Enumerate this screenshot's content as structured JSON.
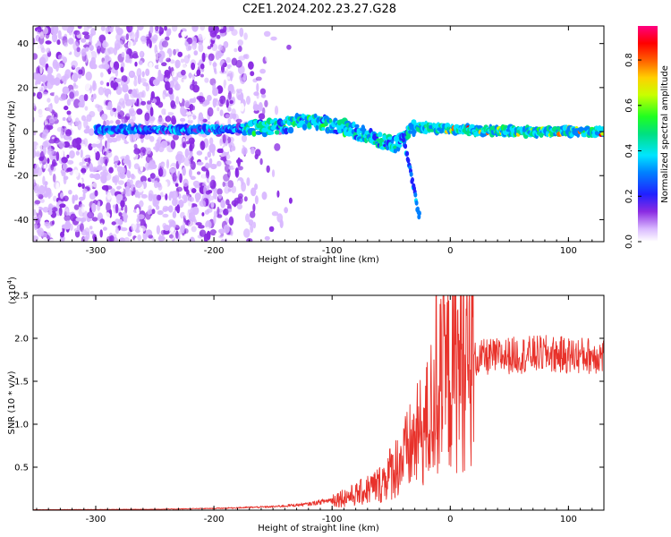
{
  "title": "C2E1.2024.202.23.27.G28",
  "chart_data": [
    {
      "type": "heatmap",
      "xlabel": "Height of straight line (km)",
      "ylabel": "Frequency (Hz)",
      "xlim": [
        -353,
        130
      ],
      "ylim": [
        -50,
        48
      ],
      "xticks": [
        -300,
        -200,
        -100,
        0,
        100
      ],
      "yticks": [
        -40,
        -20,
        0,
        20,
        40
      ],
      "colorbar": {
        "label": "Normalized spectral amplitude",
        "range": [
          0,
          0.95
        ],
        "ticks": [
          0.0,
          0.2,
          0.4,
          0.6,
          0.8
        ],
        "colormap": "purple-blue-cyan-green-yellow-orange-red-magenta"
      },
      "features": {
        "noise_region_x": [
          -353,
          -130
        ],
        "dense_noise_until_x": -175,
        "main_ridge_y_at_x": [
          [
            -295,
            1
          ],
          [
            -200,
            1
          ],
          [
            -150,
            2
          ],
          [
            -120,
            5
          ],
          [
            -90,
            2
          ],
          [
            -60,
            -4
          ],
          [
            -45,
            -6
          ],
          [
            -30,
            2
          ],
          [
            0,
            1
          ],
          [
            60,
            0
          ],
          [
            130,
            0
          ]
        ],
        "branch_down_y_at_x": [
          [
            -40,
            -2
          ],
          [
            -35,
            -15
          ],
          [
            -30,
            -28
          ],
          [
            -27,
            -38
          ]
        ]
      }
    },
    {
      "type": "line",
      "xlabel": "Height of straight line (km)",
      "ylabel": "SNR (10 * v/v)",
      "y_multiplier_label": "(x10",
      "y_multiplier_exp": "4",
      "xlim": [
        -353,
        130
      ],
      "ylim": [
        0,
        2.5
      ],
      "xticks": [
        -300,
        -200,
        -100,
        0,
        100
      ],
      "yticks": [
        0.5,
        1.0,
        1.5,
        2.0,
        2.5
      ],
      "series": [
        {
          "color": "#e8322b",
          "envelope_x": [
            -353,
            -250,
            -200,
            -150,
            -120,
            -100,
            -80,
            -60,
            -50,
            -40,
            -30,
            -20,
            -15,
            -10,
            0,
            10,
            20,
            30,
            50,
            80,
            100,
            130
          ],
          "envelope_y": [
            0.005,
            0.01,
            0.02,
            0.04,
            0.07,
            0.12,
            0.18,
            0.3,
            0.45,
            0.6,
            0.8,
            1.0,
            1.2,
            1.4,
            1.6,
            1.7,
            1.75,
            1.78,
            1.8,
            1.82,
            1.8,
            1.8
          ]
        }
      ]
    }
  ]
}
